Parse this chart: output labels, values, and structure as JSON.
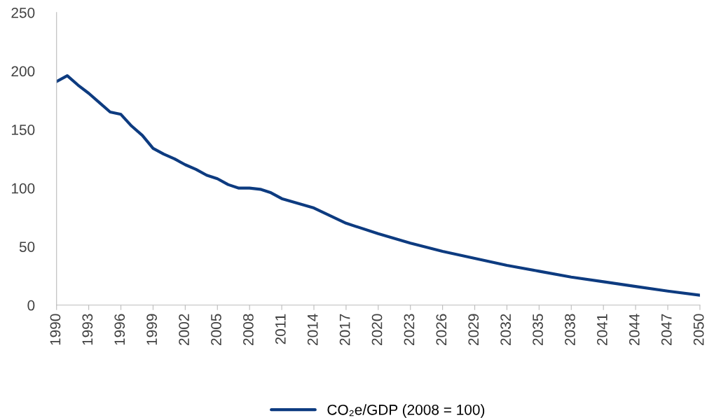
{
  "chart_data": {
    "type": "line",
    "x": [
      1990,
      1991,
      1992,
      1993,
      1994,
      1995,
      1996,
      1997,
      1998,
      1999,
      2000,
      2001,
      2002,
      2003,
      2004,
      2005,
      2006,
      2007,
      2008,
      2009,
      2010,
      2011,
      2014,
      2017,
      2020,
      2023,
      2026,
      2029,
      2032,
      2035,
      2038,
      2041,
      2044,
      2047,
      2050
    ],
    "series": [
      {
        "name": "CO₂e/GDP (2008 = 100)",
        "color": "#0d3b80",
        "values": [
          191,
          196,
          188,
          181,
          173,
          165,
          163,
          153,
          145,
          134,
          129,
          125,
          120,
          116,
          111,
          108,
          103,
          100,
          100,
          99,
          96,
          91,
          83,
          70,
          61,
          53,
          46,
          40,
          34,
          29,
          24,
          20,
          16,
          12,
          8.5
        ]
      }
    ],
    "xlim": [
      1990,
      2050
    ],
    "xticks": [
      1990,
      1993,
      1996,
      1999,
      2002,
      2005,
      2008,
      2011,
      2014,
      2017,
      2020,
      2023,
      2026,
      2029,
      2032,
      2035,
      2038,
      2041,
      2044,
      2047,
      2050
    ],
    "ylim": [
      0,
      250
    ],
    "yticks": [
      0,
      50,
      100,
      150,
      200,
      250
    ],
    "legend": "bottom"
  }
}
